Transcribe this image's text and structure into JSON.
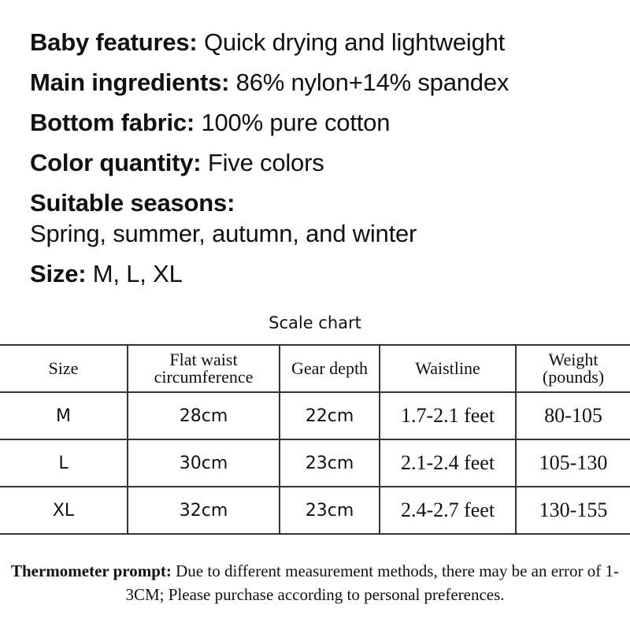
{
  "features": [
    {
      "label": "Baby features:",
      "value": "Quick drying and lightweight"
    },
    {
      "label": "Main ingredients:",
      "value": "86% nylon+14% spandex"
    },
    {
      "label": "Bottom fabric:",
      "value": "100% pure cotton"
    },
    {
      "label": "Color quantity:",
      "value": "Five colors"
    },
    {
      "label": "Suitable seasons:",
      "value": "Spring, summer, autumn, and winter"
    },
    {
      "label": "Size:",
      "value": "M, L, XL"
    }
  ],
  "scale_chart": {
    "title": "Scale chart",
    "headers": [
      "Size",
      "Flat waist circumference",
      "Gear depth",
      "Waistline",
      "Weight (pounds)"
    ],
    "rows": [
      [
        "M",
        "28cm",
        "22cm",
        "1.7-2.1 feet",
        "80-105"
      ],
      [
        "L",
        "30cm",
        "23cm",
        "2.1-2.4 feet",
        "105-130"
      ],
      [
        "XL",
        "32cm",
        "23cm",
        "2.4-2.7 feet",
        "130-155"
      ]
    ]
  },
  "note": {
    "label": "Thermometer prompt:",
    "text": "Due to different measurement methods, there may be an error of 1-3CM; Please purchase according to personal preferences."
  }
}
